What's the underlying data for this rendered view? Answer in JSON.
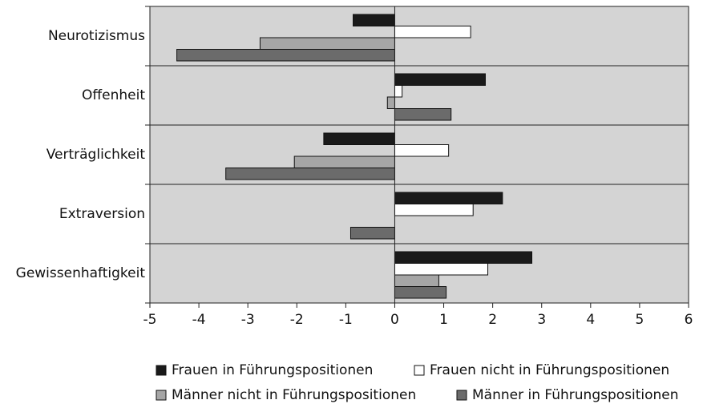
{
  "chart_data": {
    "type": "hbar",
    "categories": [
      "Neurotizismus",
      "Offenheit",
      "Verträglichkeit",
      "Extraversion",
      "Gewissenhaftigkeit"
    ],
    "series": [
      {
        "name": "Frauen in Führungspositionen",
        "color": "#1a1a1a",
        "values": [
          -0.85,
          1.85,
          -1.45,
          2.2,
          2.8
        ]
      },
      {
        "name": "Frauen nicht in Führungspositionen",
        "color": "#ffffff",
        "values": [
          1.55,
          0.15,
          1.1,
          1.6,
          1.9
        ]
      },
      {
        "name": "Männer nicht in Führungspositionen",
        "color": "#a6a6a6",
        "values": [
          -2.75,
          -0.15,
          -2.05,
          0,
          0.9
        ]
      },
      {
        "name": "Männer in Führungspositionen",
        "color": "#6b6b6b",
        "values": [
          -4.45,
          1.15,
          -3.45,
          -0.9,
          1.05
        ]
      }
    ],
    "xlim": [
      -5,
      6
    ],
    "xticks": [
      -5,
      -4,
      -3,
      -2,
      -1,
      0,
      1,
      2,
      3,
      4,
      5,
      6
    ],
    "plot_background": "#d4d4d4"
  }
}
